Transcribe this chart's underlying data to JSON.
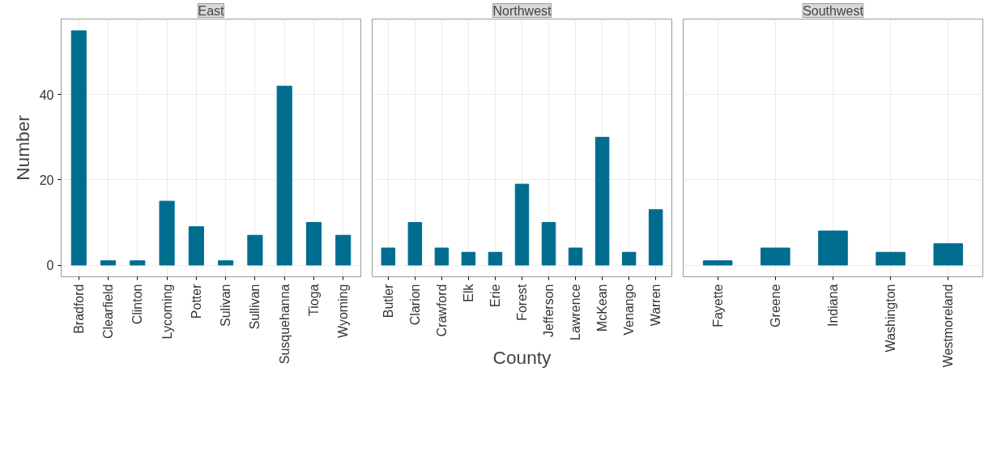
{
  "chart_data": [
    {
      "type": "bar",
      "title": "East",
      "ylabel": "Number",
      "categories": [
        "Bradford",
        "Clearfield",
        "Clinton",
        "Lycoming",
        "Potter",
        "Sulivan",
        "Sullivan",
        "Susquehanna",
        "Tioga",
        "Wyoming"
      ],
      "values": [
        55,
        1,
        1,
        15,
        9,
        1,
        7,
        42,
        10,
        7
      ],
      "color": "#006d8f",
      "ylim": [
        -2.75,
        57.75
      ],
      "yticks": [
        0,
        20,
        40
      ],
      "grid": true
    },
    {
      "type": "bar",
      "title": "Northwest",
      "xlabel": "County",
      "categories": [
        "Butler",
        "Clarion",
        "Crawford",
        "Elk",
        "Erie",
        "Forest",
        "Jefferson",
        "Lawrence",
        "McKean",
        "Venango",
        "Warren"
      ],
      "values": [
        4,
        10,
        4,
        3,
        3,
        19,
        10,
        4,
        30,
        3,
        13
      ],
      "color": "#006d8f",
      "ylim": [
        -2.75,
        57.75
      ],
      "yticks": [
        0,
        20,
        40
      ],
      "grid": true,
      "tick_labels": "x"
    },
    {
      "type": "bar",
      "title": "Southwest",
      "categories": [
        "Fayette",
        "Greene",
        "Indiana",
        "Washington",
        "Westmoreland"
      ],
      "values": [
        1,
        4,
        8,
        3,
        5
      ],
      "color": "#006d8f",
      "ylim": [
        -2.75,
        57.75
      ],
      "yticks": [
        0,
        20,
        40
      ],
      "grid": true,
      "tick_labels": "x"
    }
  ]
}
